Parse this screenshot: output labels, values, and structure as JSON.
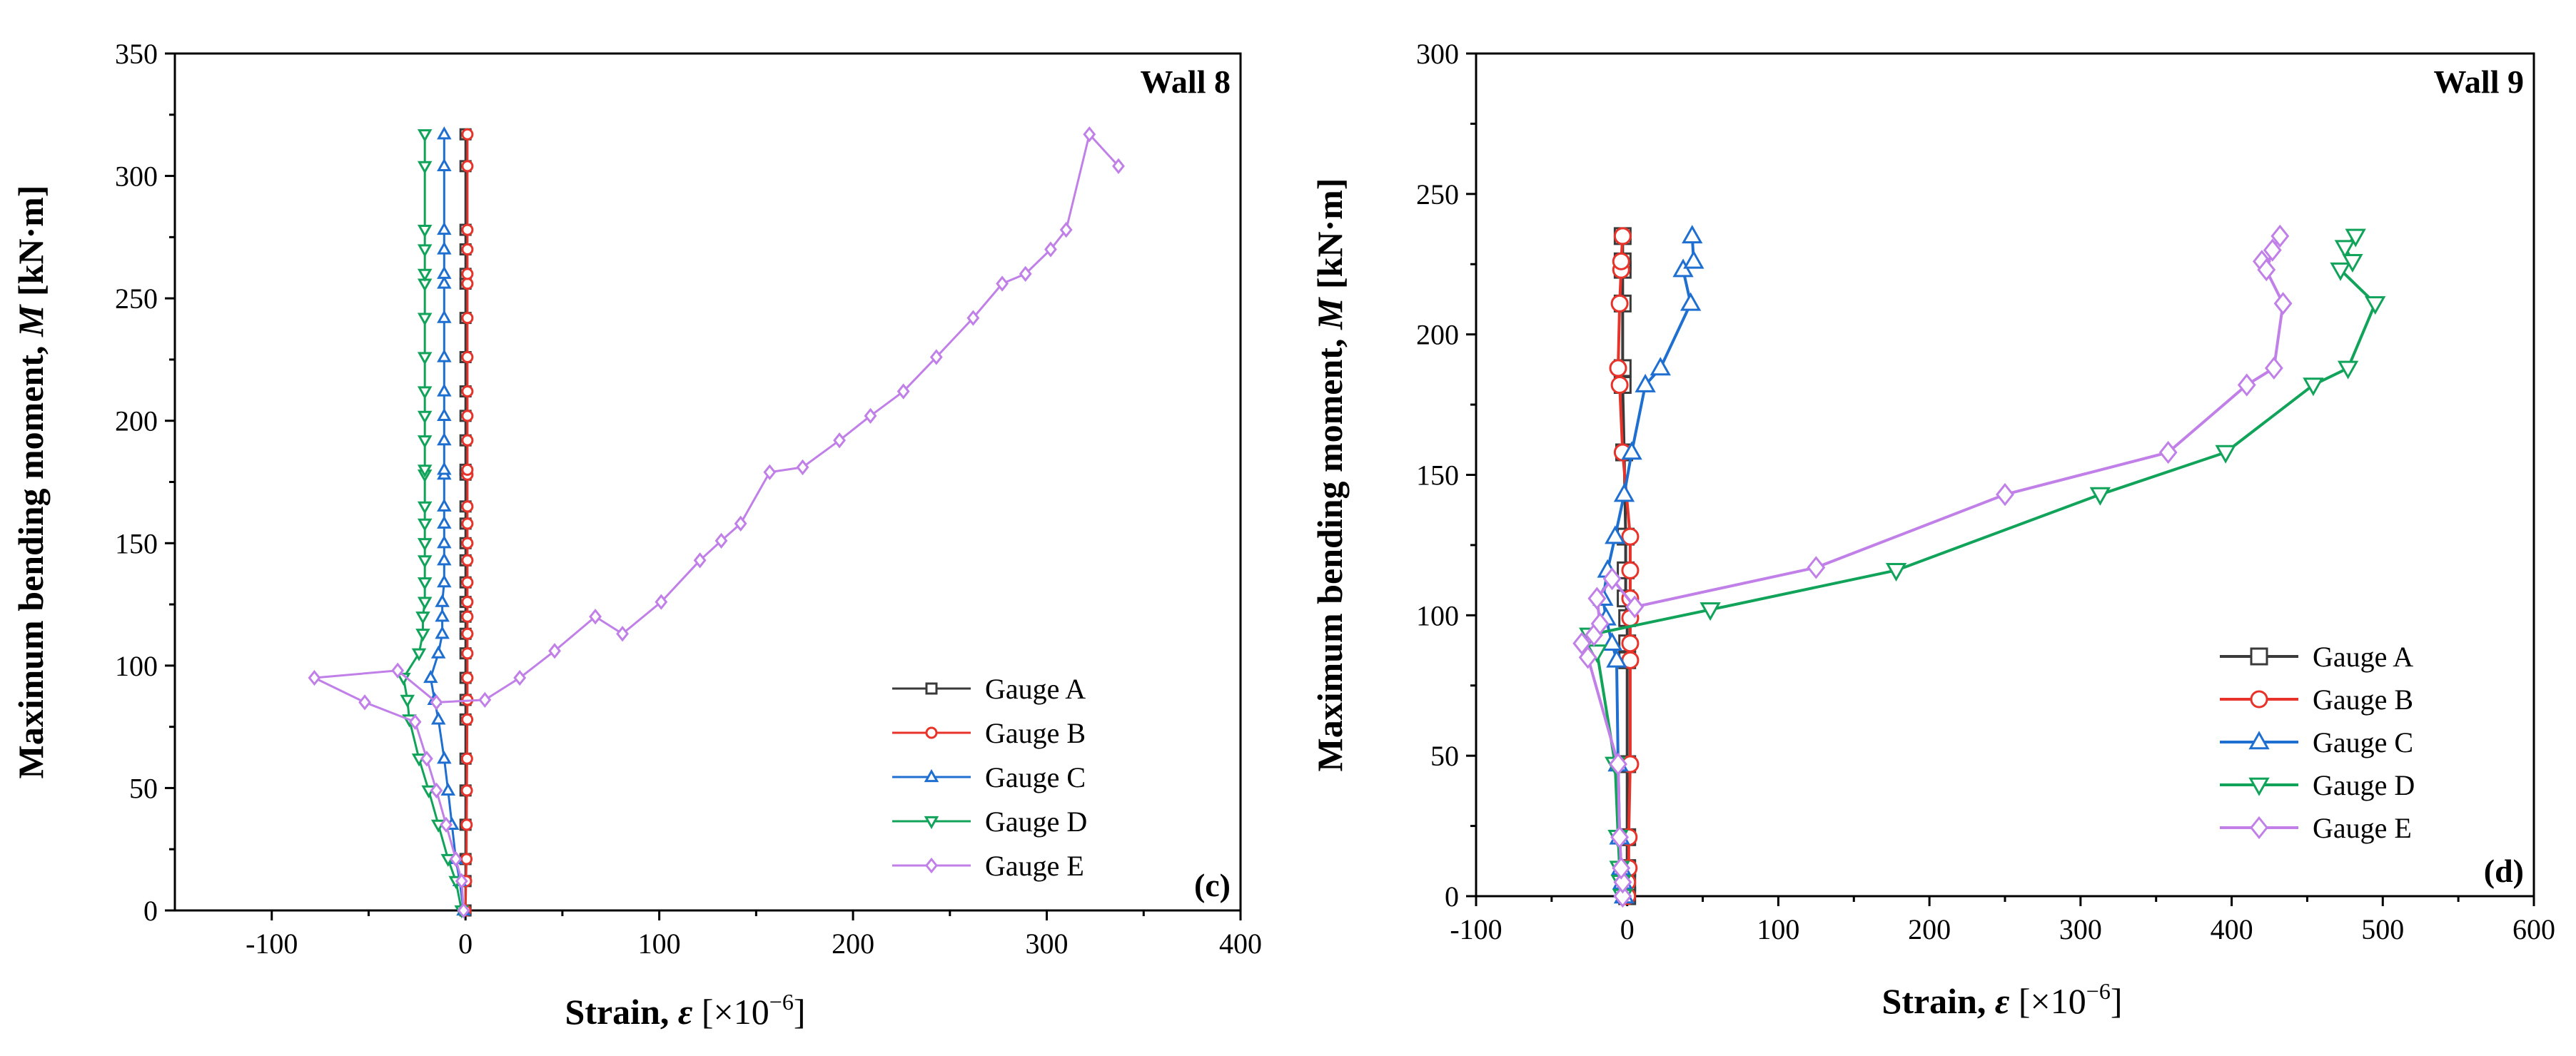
{
  "chart_data": [
    {
      "type": "line",
      "panel_title": "Wall 8",
      "panel_tag": "(c)",
      "xlabel": {
        "main": "Strain, ",
        "var": "ε",
        "unit": " [×10",
        "exp": "−6",
        "end": "]"
      },
      "ylabel": {
        "main": "Maximum bending moment, ",
        "var": "M",
        "unit": " [kN·m]"
      },
      "xlim": [
        -150,
        400
      ],
      "ylim": [
        0,
        350
      ],
      "xticks": [
        -100,
        0,
        100,
        200,
        300,
        400
      ],
      "yticks": [
        0,
        50,
        100,
        150,
        200,
        250,
        300,
        350
      ],
      "legend_position": "lower-right",
      "series": [
        {
          "name": "Gauge A",
          "color": "#3a3a3a",
          "marker": "square",
          "x": [
            0,
            0,
            0,
            0,
            0,
            0,
            0,
            0,
            0,
            0,
            0,
            0,
            0,
            0,
            0,
            0,
            0,
            0,
            0,
            0,
            0,
            0,
            0,
            0,
            0,
            0,
            0,
            0,
            0,
            0,
            0
          ],
          "y": [
            0,
            12,
            21,
            35,
            49,
            62,
            78,
            86,
            95,
            105,
            113,
            120,
            126,
            134,
            143,
            150,
            158,
            165,
            178,
            180,
            192,
            202,
            212,
            226,
            242,
            256,
            260,
            270,
            278,
            304,
            317
          ]
        },
        {
          "name": "Gauge B",
          "color": "#e8332a",
          "marker": "circle",
          "x": [
            0,
            0.3,
            0.5,
            0.6,
            0.7,
            0.8,
            0.9,
            1,
            1,
            1,
            1,
            1,
            1,
            1,
            1,
            1,
            1,
            1,
            1,
            1,
            1,
            1,
            1,
            1,
            1,
            1,
            1,
            1,
            1,
            1,
            1
          ],
          "y": [
            0,
            12,
            21,
            35,
            49,
            62,
            78,
            86,
            95,
            105,
            113,
            120,
            126,
            134,
            143,
            150,
            158,
            165,
            178,
            180,
            192,
            202,
            212,
            226,
            242,
            256,
            260,
            270,
            278,
            304,
            317
          ]
        },
        {
          "name": "Gauge C",
          "color": "#1f6fd1",
          "marker": "triangle-up",
          "x": [
            -1,
            -3,
            -5,
            -7,
            -9,
            -11,
            -14,
            -16,
            -18,
            -14,
            -12,
            -12,
            -12,
            -11,
            -11,
            -11,
            -11,
            -11,
            -11,
            -11,
            -11,
            -11,
            -11,
            -11,
            -11,
            -11,
            -11,
            -11,
            -11,
            -11,
            -11
          ],
          "y": [
            0,
            12,
            21,
            35,
            49,
            62,
            78,
            86,
            95,
            105,
            113,
            120,
            126,
            134,
            143,
            150,
            158,
            165,
            178,
            180,
            192,
            202,
            212,
            226,
            242,
            256,
            260,
            270,
            278,
            304,
            317
          ]
        },
        {
          "name": "Gauge D",
          "color": "#11a35a",
          "marker": "triangle-down",
          "x": [
            -2,
            -5,
            -9,
            -14,
            -19,
            -24,
            -29,
            -30,
            -32,
            -24,
            -22,
            -22,
            -21,
            -21,
            -21,
            -21,
            -21,
            -21,
            -21,
            -21,
            -21,
            -21,
            -21,
            -21,
            -21,
            -21,
            -21,
            -21,
            -21,
            -21,
            -21
          ],
          "y": [
            0,
            12,
            21,
            35,
            49,
            62,
            78,
            86,
            95,
            105,
            113,
            120,
            126,
            134,
            143,
            150,
            158,
            165,
            178,
            180,
            192,
            202,
            212,
            226,
            242,
            256,
            260,
            270,
            278,
            304,
            317
          ]
        },
        {
          "name": "Gauge E",
          "color": "#c080e8",
          "marker": "diamond",
          "x": [
            -1,
            -2,
            -5,
            -10,
            -15,
            -20,
            -26,
            -52,
            -78,
            -35,
            -15,
            10,
            28,
            46,
            67,
            81,
            101,
            121,
            132,
            142,
            157,
            174,
            193,
            209,
            226,
            243,
            262,
            277,
            289,
            302,
            310,
            322,
            337
          ],
          "y": [
            0,
            12,
            21,
            35,
            49,
            62,
            77,
            85,
            95,
            98,
            85,
            86,
            95,
            106,
            120,
            113,
            126,
            143,
            151,
            158,
            179,
            181,
            192,
            202,
            212,
            226,
            242,
            256,
            260,
            270,
            278,
            317,
            304
          ]
        }
      ]
    },
    {
      "type": "line",
      "panel_title": "Wall 9",
      "panel_tag": "(d)",
      "xlabel": {
        "main": "Strain, ",
        "var": "ε",
        "unit": " [×10",
        "exp": "−6",
        "end": "]"
      },
      "ylabel": {
        "main": "Maximum bending moment, ",
        "var": "M",
        "unit": " [kN·m]"
      },
      "xlim": [
        -100,
        600
      ],
      "ylim": [
        0,
        300
      ],
      "xticks": [
        -100,
        0,
        100,
        200,
        300,
        400,
        500,
        600
      ],
      "yticks": [
        0,
        50,
        100,
        150,
        200,
        250,
        300
      ],
      "legend_position": "lower-right",
      "series": [
        {
          "name": "Gauge A",
          "color": "#3a3a3a",
          "marker": "square",
          "x": [
            0,
            0,
            0,
            0,
            0,
            0,
            0,
            0,
            -1,
            -1,
            -1,
            -2,
            -3,
            -3,
            -3,
            -3,
            -3,
            -3
          ],
          "y": [
            0,
            5,
            10,
            21,
            47,
            84,
            90,
            99,
            106,
            116,
            128,
            158,
            182,
            188,
            211,
            223,
            226,
            235
          ]
        },
        {
          "name": "Gauge B",
          "color": "#e8332a",
          "marker": "circle",
          "x": [
            0,
            0,
            1,
            1,
            2,
            2,
            2,
            2,
            2,
            2,
            2,
            -3,
            -5,
            -6,
            -5,
            -4,
            -4,
            -3
          ],
          "y": [
            0,
            5,
            10,
            21,
            47,
            84,
            90,
            99,
            106,
            116,
            128,
            158,
            182,
            188,
            211,
            223,
            226,
            235
          ]
        },
        {
          "name": "Gauge C",
          "color": "#1f6fd1",
          "marker": "triangle-up",
          "x": [
            -2,
            -3,
            -4,
            -5,
            -6,
            -7,
            -10,
            -14,
            -16,
            -13,
            -8,
            -2,
            3,
            12,
            22,
            42,
            37,
            44,
            43
          ],
          "y": [
            0,
            5,
            10,
            21,
            47,
            84,
            90,
            99,
            106,
            116,
            128,
            143,
            158,
            182,
            188,
            211,
            223,
            226,
            235
          ]
        },
        {
          "name": "Gauge D",
          "color": "#11a35a",
          "marker": "triangle-down",
          "x": [
            -3,
            -4,
            -5,
            -6,
            -8,
            -20,
            -25,
            55,
            178,
            313,
            396,
            454,
            477,
            495,
            472,
            480,
            475,
            482
          ],
          "y": [
            0,
            5,
            10,
            21,
            47,
            87,
            93,
            102,
            116,
            143,
            158,
            182,
            188,
            211,
            223,
            226,
            231,
            235
          ]
        },
        {
          "name": "Gauge E",
          "color": "#c080e8",
          "marker": "diamond",
          "x": [
            -3,
            -3,
            -4,
            -5,
            -6,
            -26,
            -30,
            -22,
            -18,
            -20,
            -10,
            5,
            125,
            250,
            358,
            410,
            428,
            434,
            420,
            423,
            427,
            432
          ],
          "y": [
            0,
            5,
            10,
            21,
            47,
            85,
            90,
            93,
            97,
            106,
            113,
            103,
            117,
            143,
            158,
            182,
            188,
            211,
            226,
            223,
            230,
            235
          ]
        }
      ]
    }
  ]
}
